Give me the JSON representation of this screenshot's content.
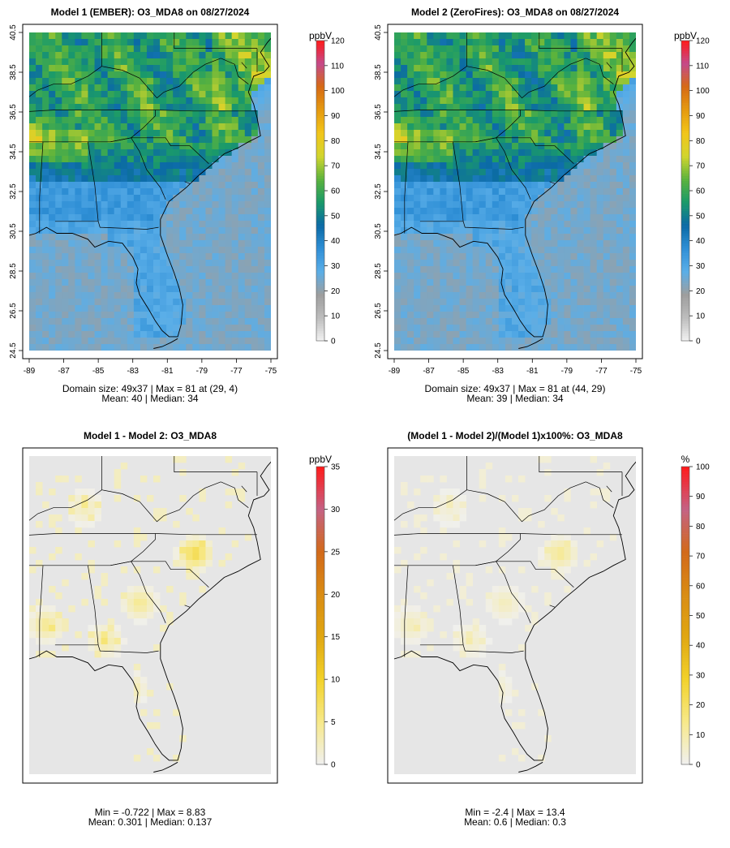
{
  "colors": {
    "scale_stops": [
      "#f2f2f2",
      "#bdbdbd",
      "#9e9e9e",
      "#5aaee8",
      "#2f8fd6",
      "#0b6aa6",
      "#1a9a6a",
      "#5cb33c",
      "#d2d52e",
      "#f2c51a",
      "#e59a10",
      "#d66a14",
      "#c44a8a",
      "#ff1a1a"
    ],
    "diff_stops": [
      "#f0f0f0",
      "#f7e98a",
      "#f2d22a",
      "#e0a712",
      "#d98c14",
      "#d26a1a",
      "#c46284",
      "#ff1a1a"
    ],
    "land": "#e6e6e6",
    "map_line": "#000000"
  },
  "chart_data": [
    {
      "type": "heatmap",
      "id": "p1",
      "title": "Model 1 (EMBER): O3_MDA8 on 08/27/2024",
      "unit": "ppbV",
      "x_ticks": [
        "-89",
        "-87",
        "-85",
        "-83",
        "-81",
        "-79",
        "-77",
        "-75"
      ],
      "y_ticks": [
        "24.5",
        "26.5",
        "28.5",
        "30.5",
        "32.5",
        "34.5",
        "36.5",
        "38.5",
        "40.5"
      ],
      "xlim": [
        -89,
        -75
      ],
      "ylim": [
        24.5,
        40.5
      ],
      "colorbar_ticks": [
        "0",
        "10",
        "20",
        "30",
        "40",
        "50",
        "60",
        "70",
        "80",
        "90",
        "100",
        "110",
        "120"
      ],
      "colorbar_range": [
        0,
        120
      ],
      "grid_size": "49x37",
      "max_value": 81,
      "max_location": "(29, 4)",
      "mean": 40,
      "median": 34,
      "stat_line1": "Domain size: 49x37 | Max = 81 at (29, 4)",
      "stat_line2": "Mean: 40 |  Median: 34"
    },
    {
      "type": "heatmap",
      "id": "p2",
      "title": "Model 2 (ZeroFires): O3_MDA8 on 08/27/2024",
      "unit": "ppbV",
      "x_ticks": [
        "-89",
        "-87",
        "-85",
        "-83",
        "-81",
        "-79",
        "-77",
        "-75"
      ],
      "y_ticks": [
        "24.5",
        "26.5",
        "28.5",
        "30.5",
        "32.5",
        "34.5",
        "36.5",
        "38.5",
        "40.5"
      ],
      "xlim": [
        -89,
        -75
      ],
      "ylim": [
        24.5,
        40.5
      ],
      "colorbar_ticks": [
        "0",
        "10",
        "20",
        "30",
        "40",
        "50",
        "60",
        "70",
        "80",
        "90",
        "100",
        "110",
        "120"
      ],
      "colorbar_range": [
        0,
        120
      ],
      "grid_size": "49x37",
      "max_value": 81,
      "max_location": "(44, 29)",
      "mean": 39,
      "median": 34,
      "stat_line1": "Domain size: 49x37 | Max = 81 at (44, 29)",
      "stat_line2": "Mean: 39 |  Median: 34"
    },
    {
      "type": "heatmap",
      "id": "p3",
      "title": "Model 1 - Model 2: O3_MDA8",
      "unit": "ppbV",
      "colorbar_ticks": [
        "0",
        "5",
        "10",
        "15",
        "20",
        "25",
        "30",
        "35"
      ],
      "colorbar_range": [
        0,
        35
      ],
      "min_value": -0.722,
      "max_value": 8.83,
      "mean": 0.301,
      "median": 0.137,
      "stat_line1": "Min = -0.722 | Max = 8.83",
      "stat_line2": "Mean: 0.301 |  Median: 0.137"
    },
    {
      "type": "heatmap",
      "id": "p4",
      "title": "(Model 1 - Model 2)/(Model 1)x100%: O3_MDA8",
      "unit": "%",
      "colorbar_ticks": [
        "0",
        "10",
        "20",
        "30",
        "40",
        "50",
        "60",
        "70",
        "80",
        "90",
        "100"
      ],
      "colorbar_range": [
        0,
        100
      ],
      "min_value": -2.4,
      "max_value": 13.4,
      "mean": 0.6,
      "median": 0.3,
      "stat_line1": "Min = -2.4 | Max = 13.4",
      "stat_line2": "Mean: 0.6 |  Median: 0.3"
    }
  ]
}
